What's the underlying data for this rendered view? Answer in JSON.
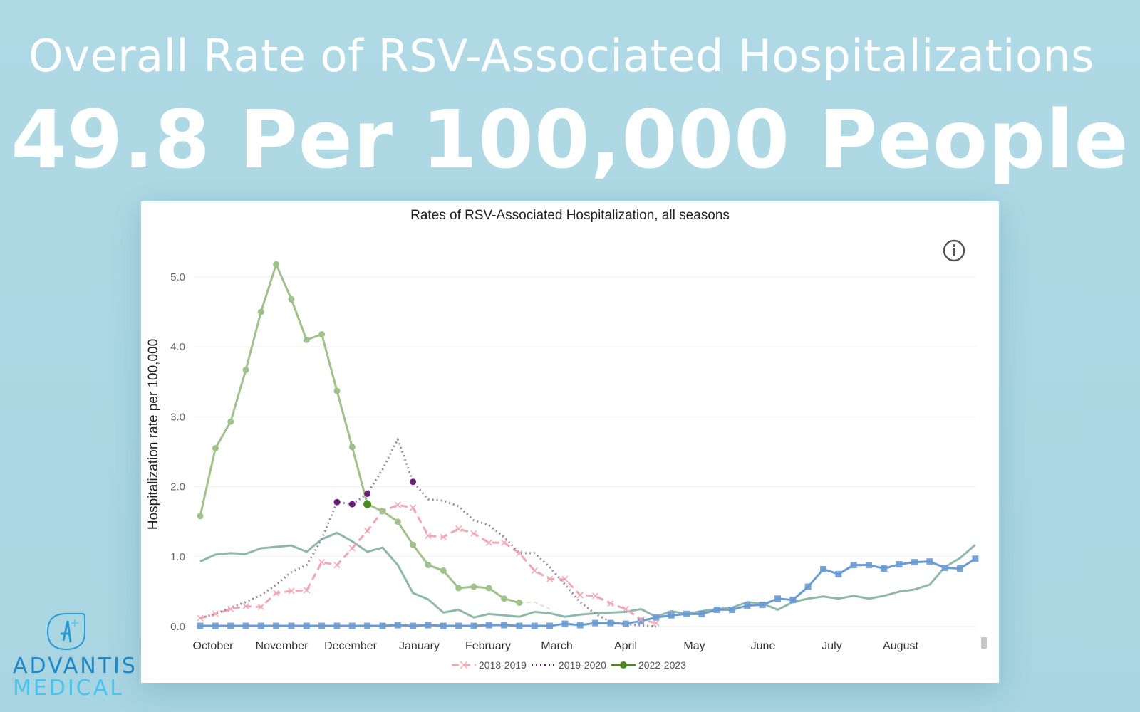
{
  "header": {
    "title": "Overall Rate of RSV-Associated Hospitalizations",
    "headline_value": "49.8 Per 100,000 People"
  },
  "logo": {
    "line1": "ADVANTIS",
    "line2": "MEDICAL",
    "icon": "advantis-a-logo-icon"
  },
  "info_icon": "info-circle-icon",
  "chart_data": {
    "type": "line",
    "title": "Rates of RSV-Associated Hospitalization, all seasons",
    "ylabel": "Hospitalization rate per 100,000",
    "xlabel": "",
    "ylim": [
      0,
      5.0
    ],
    "yticks": [
      "0.0",
      "1.0",
      "2.0",
      "3.0",
      "4.0",
      "5.0"
    ],
    "x_tick_labels": [
      "October",
      "November",
      "December",
      "January",
      "February",
      "March",
      "April",
      "May",
      "June",
      "July",
      "August"
    ],
    "grid": "horizontal",
    "legend_position": "bottom",
    "series": [
      {
        "name": "",
        "color": "#8fb8ac",
        "style": "solid",
        "marker": "none",
        "values": [
          0.93,
          1.03,
          1.05,
          1.04,
          1.12,
          1.14,
          1.16,
          1.07,
          1.25,
          1.34,
          1.22,
          1.07,
          1.13,
          0.88,
          0.48,
          0.39,
          0.2,
          0.24,
          0.13,
          0.18,
          0.16,
          0.14,
          0.21,
          0.19,
          0.14,
          0.17,
          0.19,
          0.2,
          0.21,
          0.25,
          0.14,
          0.22,
          0.18,
          0.22,
          0.25,
          0.27,
          0.35,
          0.33,
          0.24,
          0.35,
          0.4,
          0.43,
          0.4,
          0.44,
          0.4,
          0.44,
          0.5,
          0.53,
          0.6,
          0.85,
          0.98,
          1.17
        ]
      },
      {
        "name": "",
        "color": "#6a9bd3",
        "style": "solid",
        "marker": "square",
        "values": [
          0.01,
          0.01,
          0.01,
          0.01,
          0.01,
          0.01,
          0.01,
          0.01,
          0.01,
          0.01,
          0.01,
          0.01,
          0.01,
          0.02,
          0.01,
          0.02,
          0.01,
          0.01,
          0.01,
          0.02,
          0.02,
          0.01,
          0.01,
          0.01,
          0.04,
          0.02,
          0.05,
          0.05,
          0.04,
          0.08,
          0.13,
          0.16,
          0.18,
          0.18,
          0.24,
          0.24,
          0.3,
          0.31,
          0.4,
          0.38,
          0.57,
          0.82,
          0.75,
          0.88,
          0.88,
          0.83,
          0.89,
          0.92,
          0.93,
          0.84,
          0.83,
          0.97
        ]
      },
      {
        "name": "2018-2019",
        "color": "#f2a7b3",
        "style": "dashed",
        "marker": "x",
        "values": [
          0.12,
          0.18,
          0.25,
          0.29,
          0.28,
          0.48,
          0.51,
          0.52,
          0.92,
          0.88,
          1.12,
          1.37,
          1.65,
          1.74,
          1.7,
          1.3,
          1.28,
          1.4,
          1.33,
          1.2,
          1.2,
          1.05,
          0.8,
          0.68,
          0.68,
          0.45,
          0.44,
          0.33,
          0.25,
          0.1,
          0.05
        ]
      },
      {
        "name": "2019-2020",
        "color": "#9a86a8",
        "style": "dotted",
        "marker": "none",
        "highlighted_points": [
          9,
          10,
          11,
          14
        ],
        "highlight_color": "#6b1f78",
        "values": [
          0.12,
          0.18,
          0.27,
          0.35,
          0.45,
          0.6,
          0.78,
          0.88,
          1.25,
          1.78,
          1.75,
          1.9,
          2.25,
          2.68,
          2.07,
          1.82,
          1.8,
          1.72,
          1.52,
          1.45,
          1.28,
          1.05,
          1.05,
          0.85,
          0.6,
          0.35,
          0.18,
          0.07,
          0.03,
          0.02,
          0.0
        ]
      },
      {
        "name": "2022-2023",
        "color": "#9fc28a",
        "style": "solid",
        "marker": "circle",
        "highlighted_points": [
          11
        ],
        "highlight_color": "#4a8a1e",
        "values": [
          1.58,
          2.55,
          2.93,
          3.67,
          4.5,
          5.18,
          4.68,
          4.1,
          4.18,
          3.37,
          2.57,
          1.75,
          1.65,
          1.5,
          1.17,
          0.88,
          0.8,
          0.55,
          0.57,
          0.55,
          0.4,
          0.34
        ],
        "faded_tail": [
          0.34,
          0.35,
          0.25
        ]
      }
    ]
  }
}
